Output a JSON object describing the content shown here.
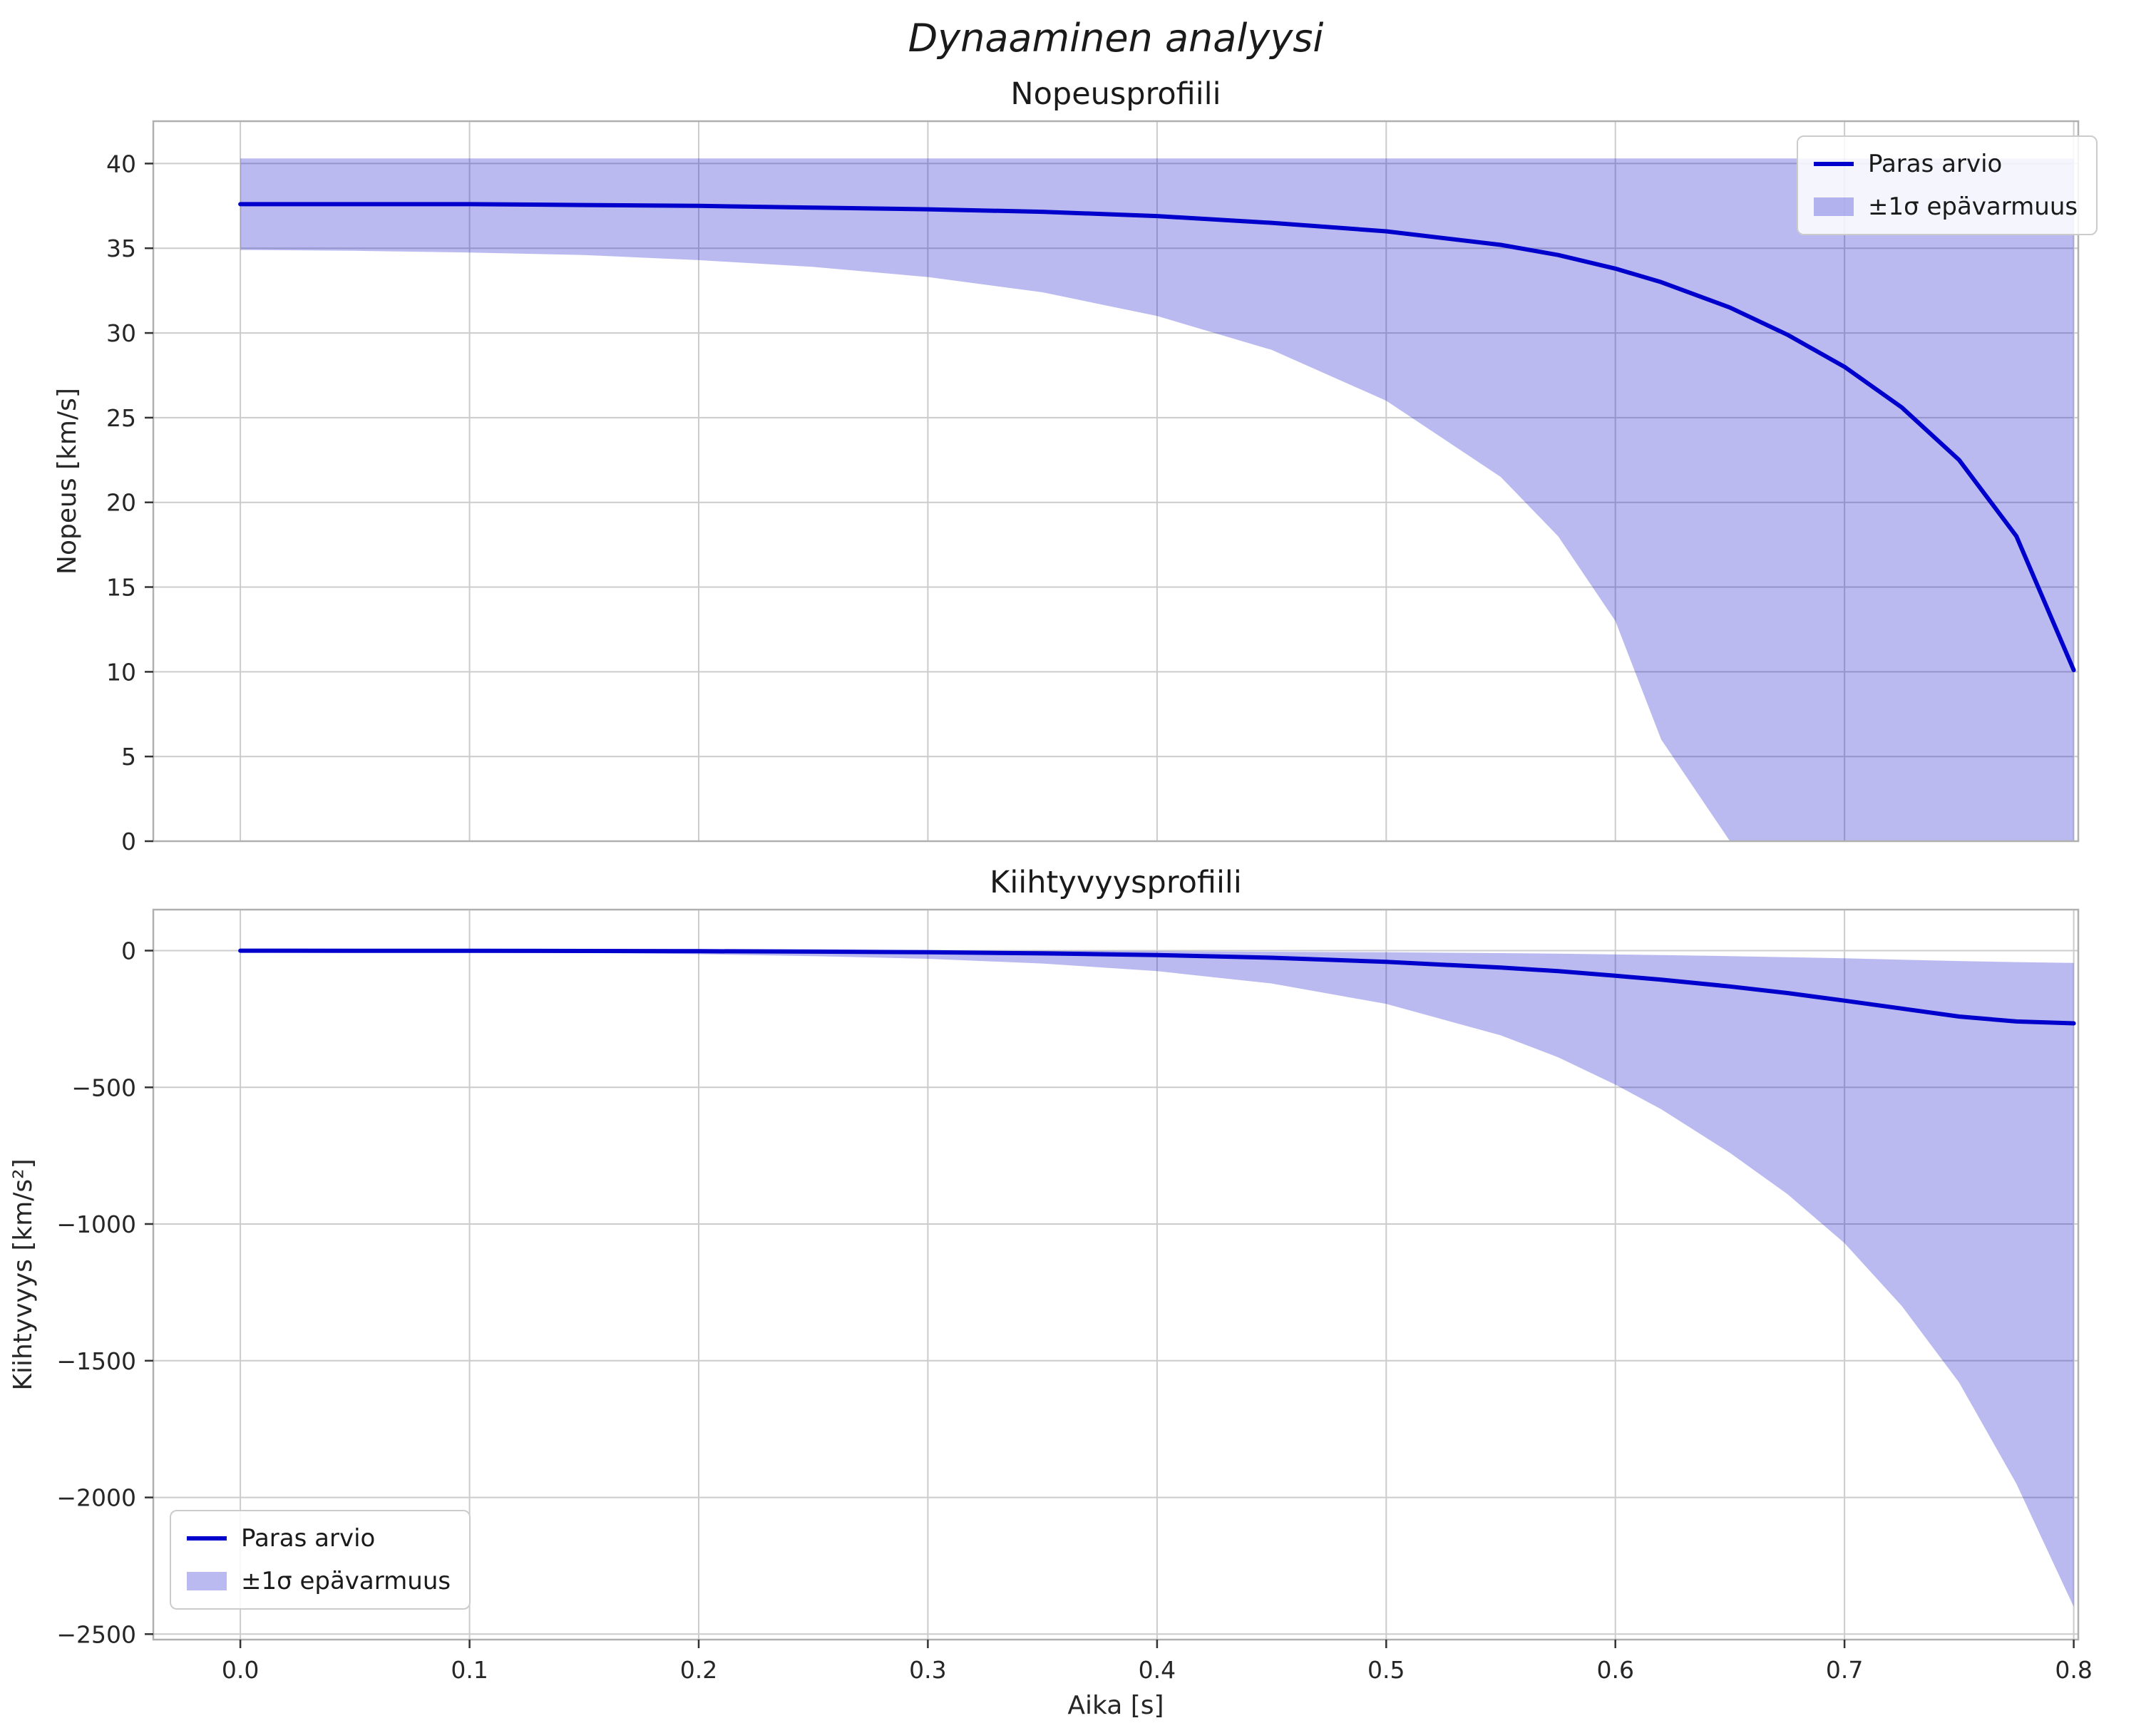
{
  "figure": {
    "suptitle": "Dynaaminen analyysi"
  },
  "colors": {
    "line": "#0000cd",
    "band_fill": "#0000cd",
    "band_opacity": 0.27,
    "grid": "#cccccc",
    "spine": "#b0b0b0",
    "tick": "#333333",
    "text": "#262626",
    "legend_border": "#cccccc"
  },
  "chart_data": [
    {
      "type": "line",
      "title": "Nopeusprofiili",
      "xlabel": "",
      "ylabel": "Nopeus [km/s]",
      "xlim": [
        -0.038,
        0.802
      ],
      "ylim": [
        0,
        42.5
      ],
      "xticks": [
        0.0,
        0.1,
        0.2,
        0.3,
        0.4,
        0.5,
        0.6,
        0.7,
        0.8
      ],
      "yticks": [
        0,
        5,
        10,
        15,
        20,
        25,
        30,
        35,
        40
      ],
      "show_xticklabels": false,
      "grid": true,
      "legend_position": "upper right",
      "x": [
        0,
        0.05,
        0.1,
        0.15,
        0.2,
        0.25,
        0.3,
        0.35,
        0.4,
        0.45,
        0.5,
        0.55,
        0.575,
        0.6,
        0.62,
        0.65,
        0.675,
        0.7,
        0.725,
        0.75,
        0.775,
        0.8
      ],
      "series": [
        {
          "name": "Paras arvio",
          "values": [
            37.6,
            37.6,
            37.6,
            37.55,
            37.5,
            37.4,
            37.3,
            37.15,
            36.9,
            36.5,
            36.0,
            35.2,
            34.6,
            33.8,
            33.0,
            31.5,
            29.9,
            28.0,
            25.6,
            22.5,
            18.0,
            10.1
          ]
        }
      ],
      "band": {
        "name": "±1σ epävarmuus",
        "upper": [
          40.3,
          40.3,
          40.3,
          40.3,
          40.3,
          40.3,
          40.3,
          40.3,
          40.3,
          40.3,
          40.3,
          40.3,
          40.3,
          40.3,
          40.3,
          40.3,
          40.3,
          40.3,
          40.3,
          40.3,
          40.3,
          40.3
        ],
        "lower": [
          34.9,
          34.85,
          34.75,
          34.6,
          34.3,
          33.9,
          33.3,
          32.4,
          31.0,
          29.0,
          26.0,
          21.5,
          18.0,
          13.0,
          6.0,
          0,
          0,
          0,
          0,
          0,
          0,
          0
        ]
      }
    },
    {
      "type": "line",
      "title": "Kiihtyvyysprofiili",
      "xlabel": "Aika [s]",
      "ylabel": "Kiihtyvyys [km/s²]",
      "xlim": [
        -0.038,
        0.802
      ],
      "ylim": [
        -2520,
        150
      ],
      "xticks": [
        0.0,
        0.1,
        0.2,
        0.3,
        0.4,
        0.5,
        0.6,
        0.7,
        0.8
      ],
      "yticks": [
        0,
        -500,
        -1000,
        -1500,
        -2000,
        -2500
      ],
      "show_xticklabels": true,
      "grid": true,
      "legend_position": "lower left",
      "x": [
        0,
        0.05,
        0.1,
        0.15,
        0.2,
        0.25,
        0.3,
        0.35,
        0.4,
        0.45,
        0.5,
        0.55,
        0.575,
        0.6,
        0.62,
        0.65,
        0.675,
        0.7,
        0.725,
        0.75,
        0.775,
        0.8
      ],
      "series": [
        {
          "name": "Paras arvio",
          "values": [
            -0.3,
            -0.4,
            -0.7,
            -1.2,
            -2.0,
            -3.5,
            -6,
            -10,
            -16,
            -26,
            -41,
            -62,
            -75,
            -92,
            -106,
            -131,
            -155,
            -183,
            -212,
            -241,
            -259,
            -266
          ]
        }
      ],
      "band": {
        "name": "±1σ epävarmuus",
        "upper": [
          0.5,
          0.5,
          0.4,
          0.3,
          0.2,
          0,
          -0.5,
          -1,
          -2,
          -4,
          -6,
          -9,
          -11,
          -14,
          -16,
          -20,
          -24,
          -28,
          -33,
          -38,
          -42,
          -45
        ],
        "lower": [
          -2,
          -3,
          -5,
          -8,
          -13,
          -20,
          -30,
          -47,
          -75,
          -120,
          -195,
          -310,
          -390,
          -490,
          -580,
          -740,
          -890,
          -1070,
          -1300,
          -1580,
          -1950,
          -2400
        ]
      }
    }
  ]
}
